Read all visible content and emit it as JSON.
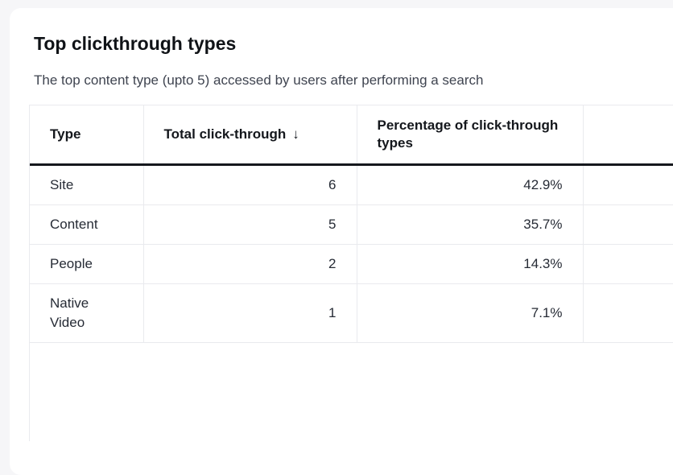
{
  "page": {
    "background_color": "#f6f6f8",
    "card_background_color": "#ffffff",
    "header_rule_color": "#15181d",
    "grid_line_color": "#e9eaee"
  },
  "widget": {
    "title": "Top clickthrough types",
    "subtitle": "The top content type (upto 5) accessed by users after performing a search",
    "table": {
      "columns": [
        {
          "key": "type",
          "label": "Type"
        },
        {
          "key": "total",
          "label": "Total click-through",
          "sort": "desc",
          "sort_icon": "↓"
        },
        {
          "key": "pct",
          "label": "Percentage of click-through types"
        },
        {
          "key": "extra",
          "label": ""
        }
      ],
      "rows": [
        {
          "type": "Site",
          "total": "6",
          "pct": "42.9%"
        },
        {
          "type": "Content",
          "total": "5",
          "pct": "35.7%"
        },
        {
          "type": "People",
          "total": "2",
          "pct": "14.3%"
        },
        {
          "type": "Native Video",
          "total": "1",
          "pct": "7.1%"
        }
      ]
    }
  }
}
